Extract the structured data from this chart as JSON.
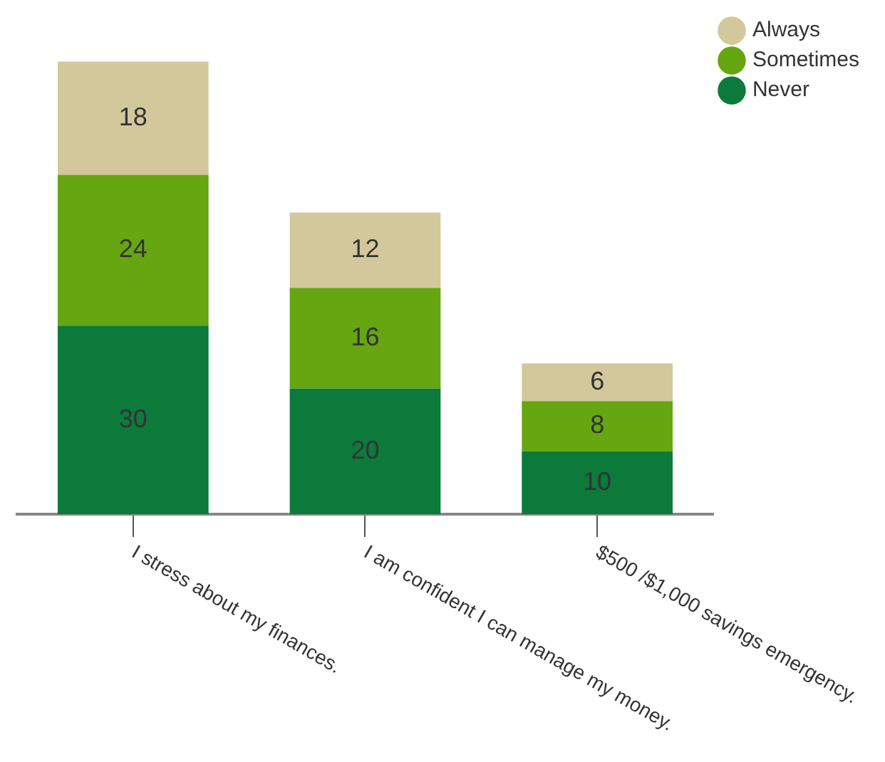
{
  "chart_data": {
    "type": "bar",
    "stacked": true,
    "categories": [
      "I stress about my finances.",
      "I am confident I can manage my money.",
      "$500 /$1,000 savings emergency."
    ],
    "series": [
      {
        "name": "Never",
        "color": "#0b7a3a",
        "values": [
          30,
          20,
          10
        ]
      },
      {
        "name": "Sometimes",
        "color": "#66a611",
        "values": [
          24,
          16,
          8
        ]
      },
      {
        "name": "Always",
        "color": "#d3c89b",
        "values": [
          18,
          12,
          6
        ]
      }
    ],
    "data_labels": true,
    "legend": "top right"
  }
}
